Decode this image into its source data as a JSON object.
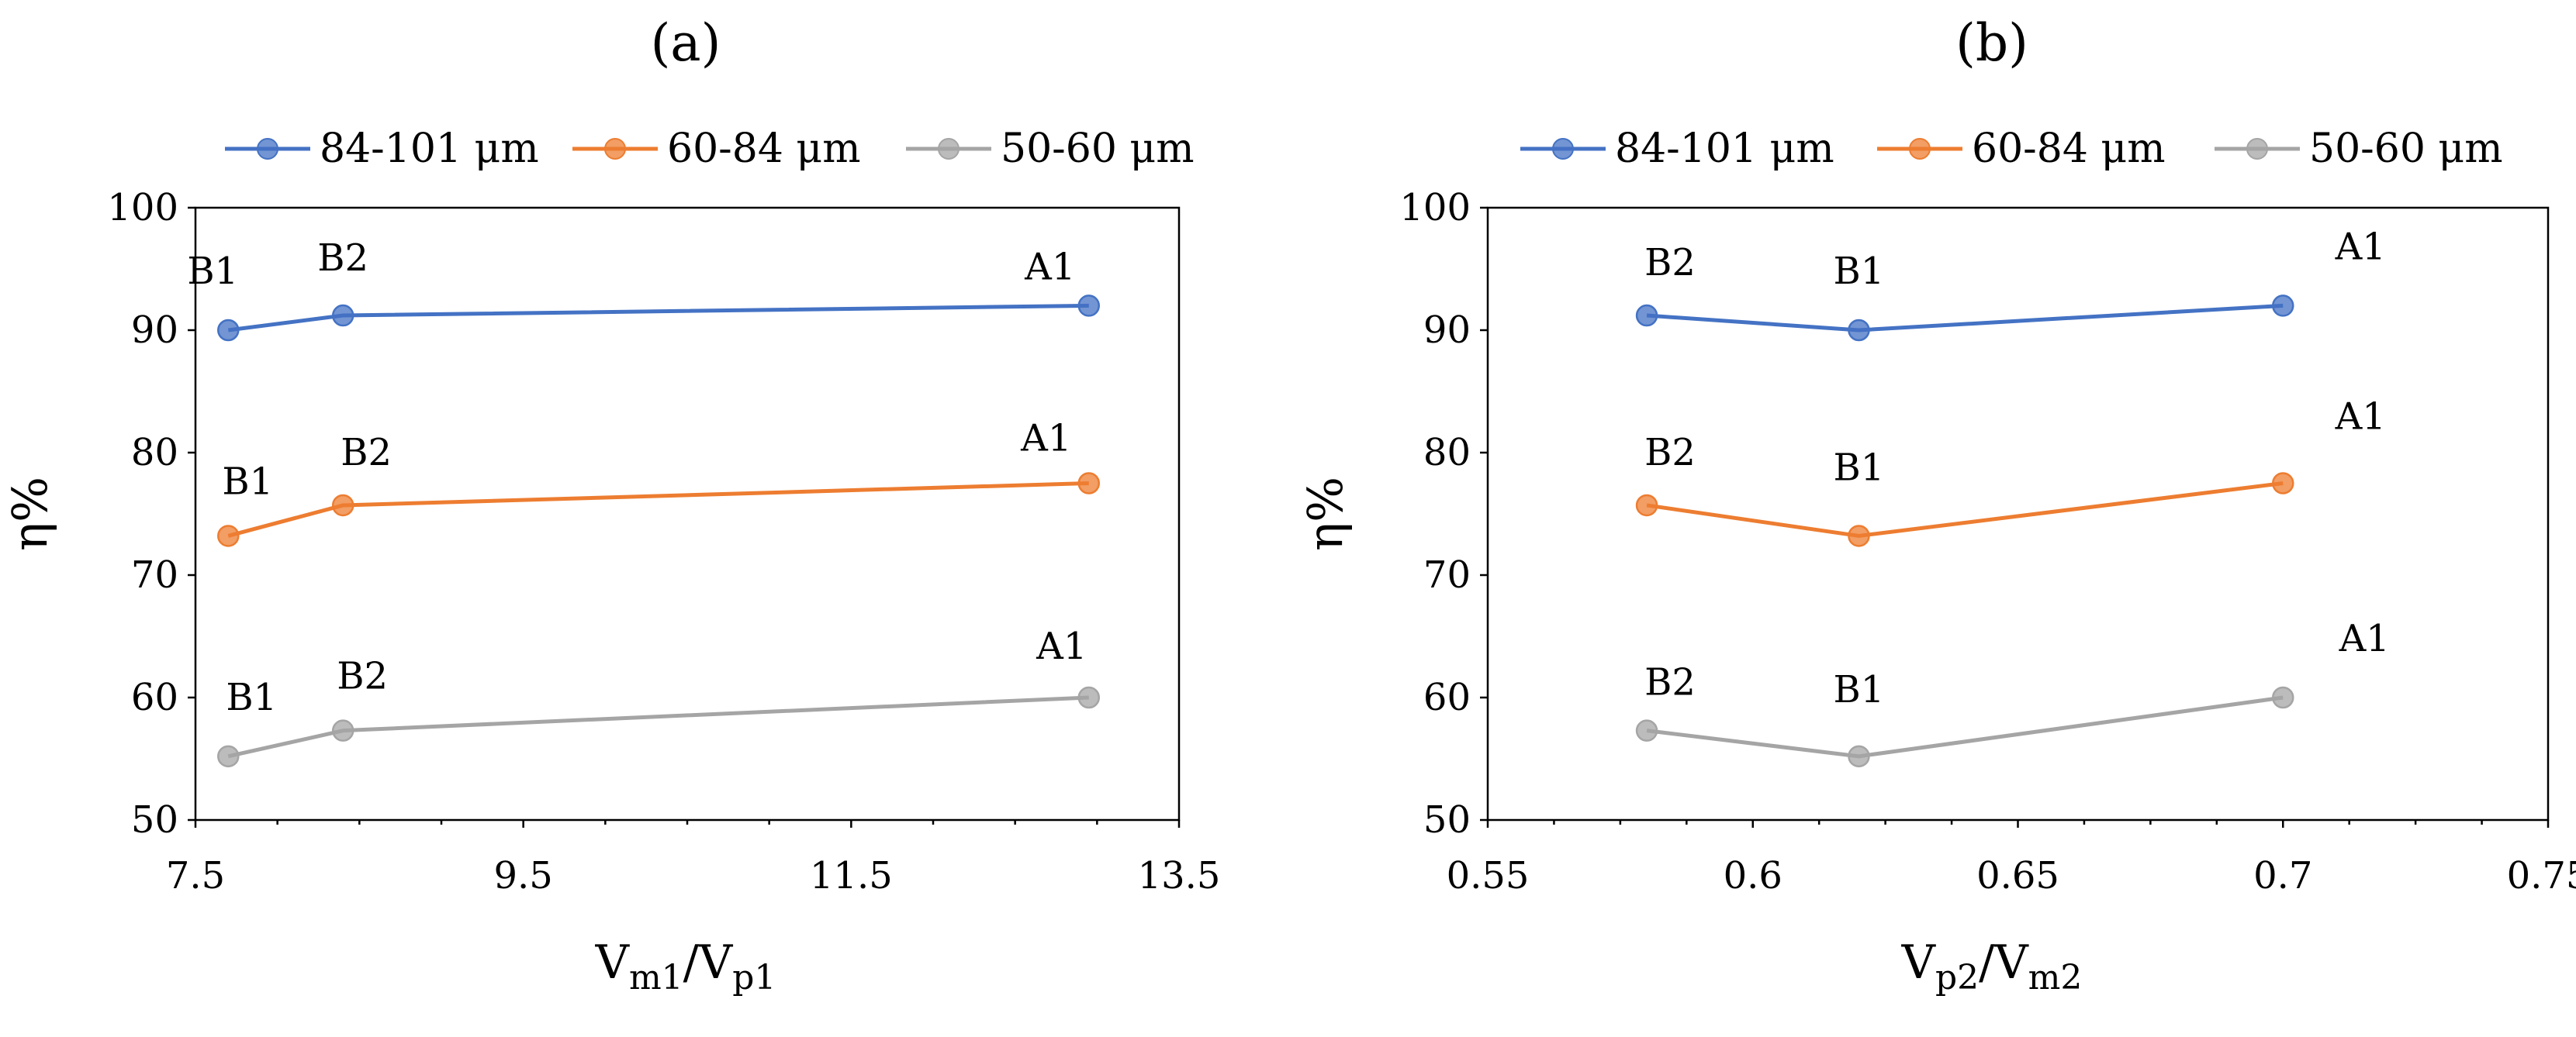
{
  "chart_data": [
    {
      "panel": "(a)",
      "type": "line",
      "title": "(a)",
      "ylabel": "η%",
      "xlabel": {
        "main": "V",
        "sub1": "m1",
        "sep": "/V",
        "sub2": "p1"
      },
      "xlim": [
        7.5,
        13.5
      ],
      "ylim": [
        50,
        100
      ],
      "xticks": [
        7.5,
        9.5,
        11.5,
        13.5
      ],
      "xtick_labels": [
        "7.5",
        "9.5",
        "11.5",
        "13.5"
      ],
      "yticks": [
        50,
        60,
        70,
        80,
        90,
        100
      ],
      "ytick_labels": [
        "50",
        "60",
        "70",
        "80",
        "90",
        "100"
      ],
      "legend_position": "top",
      "grid": false,
      "series": [
        {
          "name": "84-101 μm",
          "color": "#4472C4",
          "x": [
            7.7,
            8.4,
            12.95
          ],
          "y": [
            90.0,
            91.2,
            92.0
          ],
          "point_labels": [
            "B1",
            "B2",
            "A1"
          ]
        },
        {
          "name": "60-84 μm",
          "color": "#ED7D31",
          "x": [
            7.7,
            8.4,
            12.95
          ],
          "y": [
            73.2,
            75.7,
            77.5
          ],
          "point_labels": [
            "B1",
            "B2",
            "A1"
          ]
        },
        {
          "name": "50-60 μm",
          "color": "#A5A5A5",
          "x": [
            7.7,
            8.4,
            12.95
          ],
          "y": [
            55.2,
            57.3,
            60.0
          ],
          "point_labels": [
            "B1",
            "B2",
            "A1"
          ]
        }
      ]
    },
    {
      "panel": "(b)",
      "type": "line",
      "title": "(b)",
      "ylabel": "η%",
      "xlabel": {
        "main": "V",
        "sub1": "p2",
        "sep": "/V",
        "sub2": "m2"
      },
      "xlim": [
        0.55,
        0.75
      ],
      "ylim": [
        50,
        100
      ],
      "xticks": [
        0.55,
        0.6,
        0.65,
        0.7,
        0.75
      ],
      "xtick_labels": [
        "0.55",
        "0.6",
        "0.65",
        "0.7",
        "0.75"
      ],
      "yticks": [
        50,
        60,
        70,
        80,
        90,
        100
      ],
      "ytick_labels": [
        "50",
        "60",
        "70",
        "80",
        "90",
        "100"
      ],
      "legend_position": "top",
      "grid": false,
      "series": [
        {
          "name": "84-101 μm",
          "color": "#4472C4",
          "x": [
            0.58,
            0.62,
            0.7
          ],
          "y": [
            91.2,
            90.0,
            92.0
          ],
          "point_labels": [
            "B2",
            "B1",
            "A1"
          ]
        },
        {
          "name": "60-84 μm",
          "color": "#ED7D31",
          "x": [
            0.58,
            0.62,
            0.7
          ],
          "y": [
            75.7,
            73.2,
            77.5
          ],
          "point_labels": [
            "B2",
            "B1",
            "A1"
          ]
        },
        {
          "name": "50-60 μm",
          "color": "#A5A5A5",
          "x": [
            0.58,
            0.62,
            0.7
          ],
          "y": [
            57.3,
            55.2,
            60.0
          ],
          "point_labels": [
            "B2",
            "B1",
            "A1"
          ]
        }
      ]
    }
  ]
}
